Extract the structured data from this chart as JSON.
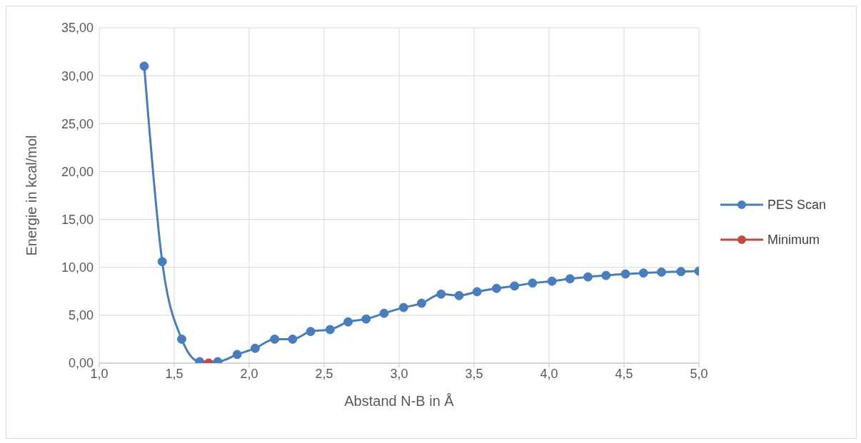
{
  "chart_data": {
    "type": "line",
    "xlabel": "Abstand N-B in Å",
    "ylabel": "Energie in kcal/mol",
    "xlim": [
      1.0,
      5.0
    ],
    "xticks": [
      {
        "value": 1.0,
        "label": "1,0"
      },
      {
        "value": 1.5,
        "label": "1,5"
      },
      {
        "value": 2.0,
        "label": "2,0"
      },
      {
        "value": 2.5,
        "label": "2,5"
      },
      {
        "value": 3.0,
        "label": "3,0"
      },
      {
        "value": 3.5,
        "label": "3,5"
      },
      {
        "value": 4.0,
        "label": "4,0"
      },
      {
        "value": 4.5,
        "label": "4,5"
      },
      {
        "value": 5.0,
        "label": "5,0"
      }
    ],
    "ylim": [
      0,
      35
    ],
    "yticks": [
      {
        "value": 0,
        "label": "0,00"
      },
      {
        "value": 5,
        "label": "5,00"
      },
      {
        "value": 10,
        "label": "10,00"
      },
      {
        "value": 15,
        "label": "15,00"
      },
      {
        "value": 20,
        "label": "20,00"
      },
      {
        "value": 25,
        "label": "25,00"
      },
      {
        "value": 30,
        "label": "30,00"
      },
      {
        "value": 35,
        "label": "35,00"
      }
    ],
    "grid": true,
    "legend": "right",
    "marker": "circle",
    "line_style": "solid",
    "series": [
      {
        "name": "PES Scan",
        "color": "#4a7ebb",
        "x": [
          1.3,
          1.42,
          1.55,
          1.67,
          1.79,
          1.92,
          2.04,
          2.17,
          2.29,
          2.41,
          2.54,
          2.66,
          2.78,
          2.9,
          3.03,
          3.15,
          3.28,
          3.4,
          3.52,
          3.65,
          3.77,
          3.89,
          4.02,
          4.14,
          4.26,
          4.38,
          4.51,
          4.63,
          4.75,
          4.88,
          5.0
        ],
        "values": [
          31.0,
          10.6,
          2.5,
          0.15,
          0.15,
          0.9,
          1.55,
          2.5,
          2.5,
          3.3,
          3.5,
          4.3,
          4.6,
          5.2,
          5.8,
          6.25,
          7.2,
          7.05,
          7.45,
          7.8,
          8.05,
          8.35,
          8.55,
          8.8,
          9.0,
          9.15,
          9.3,
          9.4,
          9.5,
          9.55,
          9.6
        ]
      },
      {
        "name": "Minimum",
        "color": "#be4b48",
        "x": [
          1.73
        ],
        "values": [
          0.0
        ]
      }
    ]
  }
}
